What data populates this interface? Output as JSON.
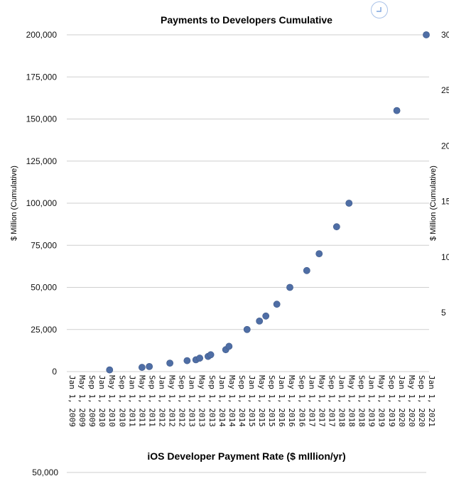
{
  "chart_data": [
    {
      "type": "scatter",
      "title": "Payments to Developers Cumulative",
      "ylabel": "$ Million (Cumulative)",
      "ylabel_right": "$ Million (Cumulative)",
      "ylim": [
        0,
        200000
      ],
      "yticks": [
        "200,000",
        "175,000",
        "150,000",
        "125,000",
        "100,000",
        "75,000",
        "50,000",
        "25,000",
        "0"
      ],
      "right_ticks_partial": [
        "30",
        "25",
        "20",
        "15",
        "10",
        "5"
      ],
      "xticks": [
        "Jan 1, 2009",
        "May 1, 2009",
        "Sep 1, 2009",
        "Jan 1, 2010",
        "May 1, 2010",
        "Sep 1, 2010",
        "Jan 1, 2011",
        "May 1, 2011",
        "Sep 1, 2011",
        "Jan 1, 2012",
        "May 1, 2012",
        "Sep 1, 2012",
        "Jan 1, 2013",
        "May 1, 2013",
        "Sep 1, 2013",
        "Jan 1, 2014",
        "May 1, 2014",
        "Sep 1, 2014",
        "Jan 1, 2015",
        "May 1, 2015",
        "Sep 1, 2015",
        "Jan 1, 2016",
        "May 1, 2016",
        "Sep 1, 2016",
        "Jan 1, 2017",
        "May 1, 2017",
        "Sep 1, 2017",
        "Jan 1, 2018",
        "May 1, 2018",
        "Sep 1, 2018",
        "Jan 1, 2019",
        "May 1, 2019",
        "Sep 1, 2019",
        "Jan 1, 2020",
        "May 1, 2020",
        "Sep 1, 2020",
        "Jan 1, 2021"
      ],
      "xlim": [
        "2009-01-01",
        "2021-01-01"
      ],
      "grid": "horizontal",
      "points": [
        {
          "x": "2010-06-07",
          "y": 1000
        },
        {
          "x": "2011-07-07",
          "y": 2500
        },
        {
          "x": "2011-10-04",
          "y": 3000
        },
        {
          "x": "2012-06-11",
          "y": 5000
        },
        {
          "x": "2013-01-07",
          "y": 6500
        },
        {
          "x": "2013-04-24",
          "y": 7000
        },
        {
          "x": "2013-06-10",
          "y": 8000
        },
        {
          "x": "2013-09-20",
          "y": 9000
        },
        {
          "x": "2013-10-22",
          "y": 10000
        },
        {
          "x": "2014-04-23",
          "y": 13000
        },
        {
          "x": "2014-06-02",
          "y": 15000
        },
        {
          "x": "2015-01-08",
          "y": 25000
        },
        {
          "x": "2015-06-08",
          "y": 30000
        },
        {
          "x": "2015-08-25",
          "y": 33000
        },
        {
          "x": "2016-01-06",
          "y": 40000
        },
        {
          "x": "2016-06-13",
          "y": 50000
        },
        {
          "x": "2017-01-05",
          "y": 60000
        },
        {
          "x": "2017-06-05",
          "y": 70000
        },
        {
          "x": "2018-01-04",
          "y": 86000
        },
        {
          "x": "2018-06-04",
          "y": 100000
        },
        {
          "x": "2020-01-08",
          "y": 155000
        },
        {
          "x": "2021-01-01",
          "y": 200000
        }
      ]
    },
    {
      "type": "scatter",
      "title": "iOS Developer Payment Rate ($ mIllion/yr)",
      "yticks_visible": [
        "50,000"
      ]
    }
  ]
}
